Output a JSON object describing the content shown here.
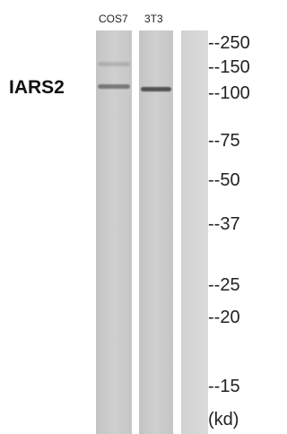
{
  "lanes": [
    "COS7",
    "3T3"
  ],
  "protein": "IARS2",
  "markers": [
    "--250",
    "--150",
    "--100",
    "--75",
    "--50",
    "--37",
    "--25",
    "--20",
    "--15",
    "(kd)"
  ]
}
